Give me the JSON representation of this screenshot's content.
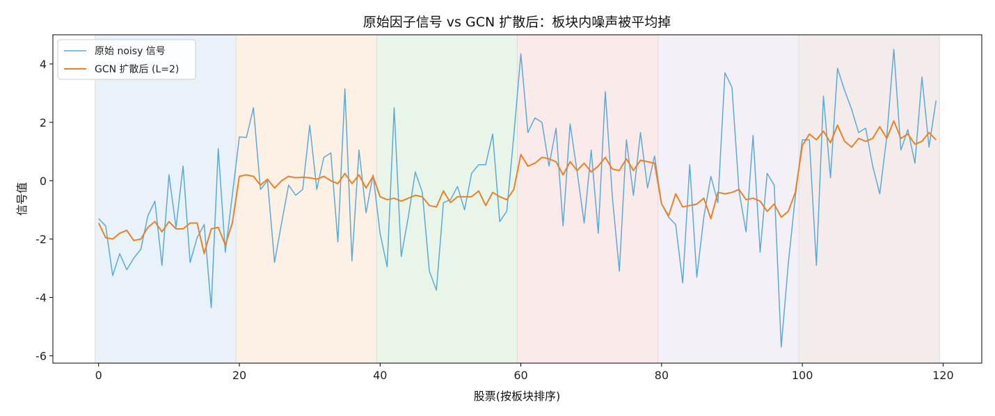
{
  "chart_data": {
    "type": "line",
    "title": "原始因子信号 vs GCN 扩散后：板块内噪声被平均掉",
    "xlabel": "股票(按板块排序)",
    "ylabel": "信号值",
    "xlim": [
      -6.5,
      125.5
    ],
    "ylim": [
      -6.25,
      5.0
    ],
    "xticks": [
      0,
      20,
      40,
      60,
      80,
      100,
      120
    ],
    "yticks": [
      -6,
      -4,
      -2,
      0,
      2,
      4
    ],
    "grid": false,
    "legend_position": "upper-left",
    "sectors": [
      {
        "start": -0.5,
        "end": 19.5,
        "color": "#e9f1f9"
      },
      {
        "start": 19.5,
        "end": 39.5,
        "color": "#fdf1e6"
      },
      {
        "start": 39.5,
        "end": 59.5,
        "color": "#eaf5ea"
      },
      {
        "start": 59.5,
        "end": 79.5,
        "color": "#fbeaea"
      },
      {
        "start": 79.5,
        "end": 99.5,
        "color": "#f4f0f8"
      },
      {
        "start": 99.5,
        "end": 119.5,
        "color": "#f4eceb"
      }
    ],
    "series": [
      {
        "name": "原始 noisy 信号",
        "color": "#5aa9d6",
        "width": 1.5,
        "x": [
          0,
          1,
          2,
          3,
          4,
          5,
          6,
          7,
          8,
          9,
          10,
          11,
          12,
          13,
          14,
          15,
          16,
          17,
          18,
          19,
          20,
          21,
          22,
          23,
          24,
          25,
          26,
          27,
          28,
          29,
          30,
          31,
          32,
          33,
          34,
          35,
          36,
          37,
          38,
          39,
          40,
          41,
          42,
          43,
          44,
          45,
          46,
          47,
          48,
          49,
          50,
          51,
          52,
          53,
          54,
          55,
          56,
          57,
          58,
          59,
          60,
          61,
          62,
          63,
          64,
          65,
          66,
          67,
          68,
          69,
          70,
          71,
          72,
          73,
          74,
          75,
          76,
          77,
          78,
          79,
          80,
          81,
          82,
          83,
          84,
          85,
          86,
          87,
          88,
          89,
          90,
          91,
          92,
          93,
          94,
          95,
          96,
          97,
          98,
          99,
          100,
          101,
          102,
          103,
          104,
          105,
          106,
          107,
          108,
          109,
          110,
          111,
          112,
          113,
          114,
          115,
          116,
          117,
          118,
          119
        ],
        "values": [
          -1.3,
          -1.55,
          -3.25,
          -2.5,
          -3.05,
          -2.65,
          -2.35,
          -1.2,
          -0.7,
          -2.9,
          0.2,
          -1.6,
          0.5,
          -2.8,
          -1.95,
          -1.5,
          -4.35,
          1.1,
          -2.45,
          -0.5,
          1.5,
          1.48,
          2.5,
          -0.3,
          0.0,
          -2.8,
          -1.45,
          -0.15,
          -0.5,
          -0.3,
          1.9,
          -0.3,
          0.8,
          0.95,
          -2.1,
          3.15,
          -2.75,
          1.05,
          -1.1,
          0.2,
          -1.8,
          -2.95,
          2.5,
          -2.6,
          -1.25,
          0.3,
          -0.4,
          -3.1,
          -3.75,
          -0.75,
          -0.65,
          -0.2,
          -1.0,
          0.25,
          0.55,
          0.55,
          1.6,
          -1.4,
          -1.05,
          1.55,
          4.35,
          1.65,
          2.15,
          2.0,
          0.5,
          1.8,
          -1.55,
          1.95,
          0.3,
          -1.45,
          1.05,
          -1.8,
          3.05,
          -0.55,
          -3.1,
          1.4,
          -0.5,
          1.65,
          -0.25,
          0.85,
          -0.8,
          -1.25,
          -1.5,
          -3.5,
          0.55,
          -3.3,
          -1.25,
          0.15,
          -0.75,
          3.7,
          3.2,
          -0.35,
          -1.75,
          1.55,
          -2.45,
          0.25,
          -0.15,
          -5.7,
          -2.85,
          -0.55,
          1.4,
          1.4,
          -2.9,
          2.9,
          0.1,
          3.85,
          3.1,
          2.45,
          1.65,
          1.8,
          0.5,
          -0.45,
          1.5,
          4.5,
          1.05,
          1.75,
          0.6,
          3.55,
          1.15,
          2.75
        ]
      },
      {
        "name": "GCN 扩散后 (L=2)",
        "color": "#e98126",
        "width": 2.0,
        "x": [
          0,
          1,
          2,
          3,
          4,
          5,
          6,
          7,
          8,
          9,
          10,
          11,
          12,
          13,
          14,
          15,
          16,
          17,
          18,
          19,
          20,
          21,
          22,
          23,
          24,
          25,
          26,
          27,
          28,
          29,
          30,
          31,
          32,
          33,
          34,
          35,
          36,
          37,
          38,
          39,
          40,
          41,
          42,
          43,
          44,
          45,
          46,
          47,
          48,
          49,
          50,
          51,
          52,
          53,
          54,
          55,
          56,
          57,
          58,
          59,
          60,
          61,
          62,
          63,
          64,
          65,
          66,
          67,
          68,
          69,
          70,
          71,
          72,
          73,
          74,
          75,
          76,
          77,
          78,
          79,
          80,
          81,
          82,
          83,
          84,
          85,
          86,
          87,
          88,
          89,
          90,
          91,
          92,
          93,
          94,
          95,
          96,
          97,
          98,
          99,
          100,
          101,
          102,
          103,
          104,
          105,
          106,
          107,
          108,
          109,
          110,
          111,
          112,
          113,
          114,
          115,
          116,
          117,
          118,
          119
        ],
        "values": [
          -1.45,
          -1.95,
          -2.0,
          -1.8,
          -1.7,
          -2.05,
          -2.0,
          -1.6,
          -1.4,
          -1.75,
          -1.4,
          -1.65,
          -1.65,
          -1.45,
          -1.45,
          -2.5,
          -1.65,
          -1.6,
          -2.2,
          -1.45,
          0.15,
          0.2,
          0.15,
          -0.15,
          0.05,
          -0.25,
          0.0,
          0.15,
          0.1,
          0.12,
          0.1,
          0.05,
          0.15,
          0.0,
          -0.1,
          0.25,
          -0.1,
          0.2,
          -0.25,
          0.15,
          -0.55,
          -0.65,
          -0.6,
          -0.7,
          -0.6,
          -0.5,
          -0.55,
          -0.85,
          -0.9,
          -0.35,
          -0.75,
          -0.55,
          -0.55,
          -0.55,
          -0.35,
          -0.85,
          -0.4,
          -0.55,
          -0.65,
          -0.3,
          0.9,
          0.5,
          0.6,
          0.8,
          0.75,
          0.65,
          0.2,
          0.65,
          0.35,
          0.6,
          0.3,
          0.5,
          0.8,
          0.4,
          0.35,
          0.75,
          0.35,
          0.7,
          0.65,
          0.6,
          -0.8,
          -1.2,
          -0.45,
          -0.9,
          -0.85,
          -0.8,
          -0.6,
          -1.3,
          -0.4,
          -0.45,
          -0.4,
          -0.3,
          -0.65,
          -0.6,
          -0.7,
          -1.05,
          -0.8,
          -1.25,
          -1.05,
          -0.4,
          1.2,
          1.6,
          1.4,
          1.7,
          1.3,
          1.9,
          1.35,
          1.15,
          1.45,
          1.35,
          1.45,
          1.85,
          1.45,
          2.05,
          1.45,
          1.6,
          1.25,
          1.35,
          1.65,
          1.4
        ]
      }
    ]
  }
}
